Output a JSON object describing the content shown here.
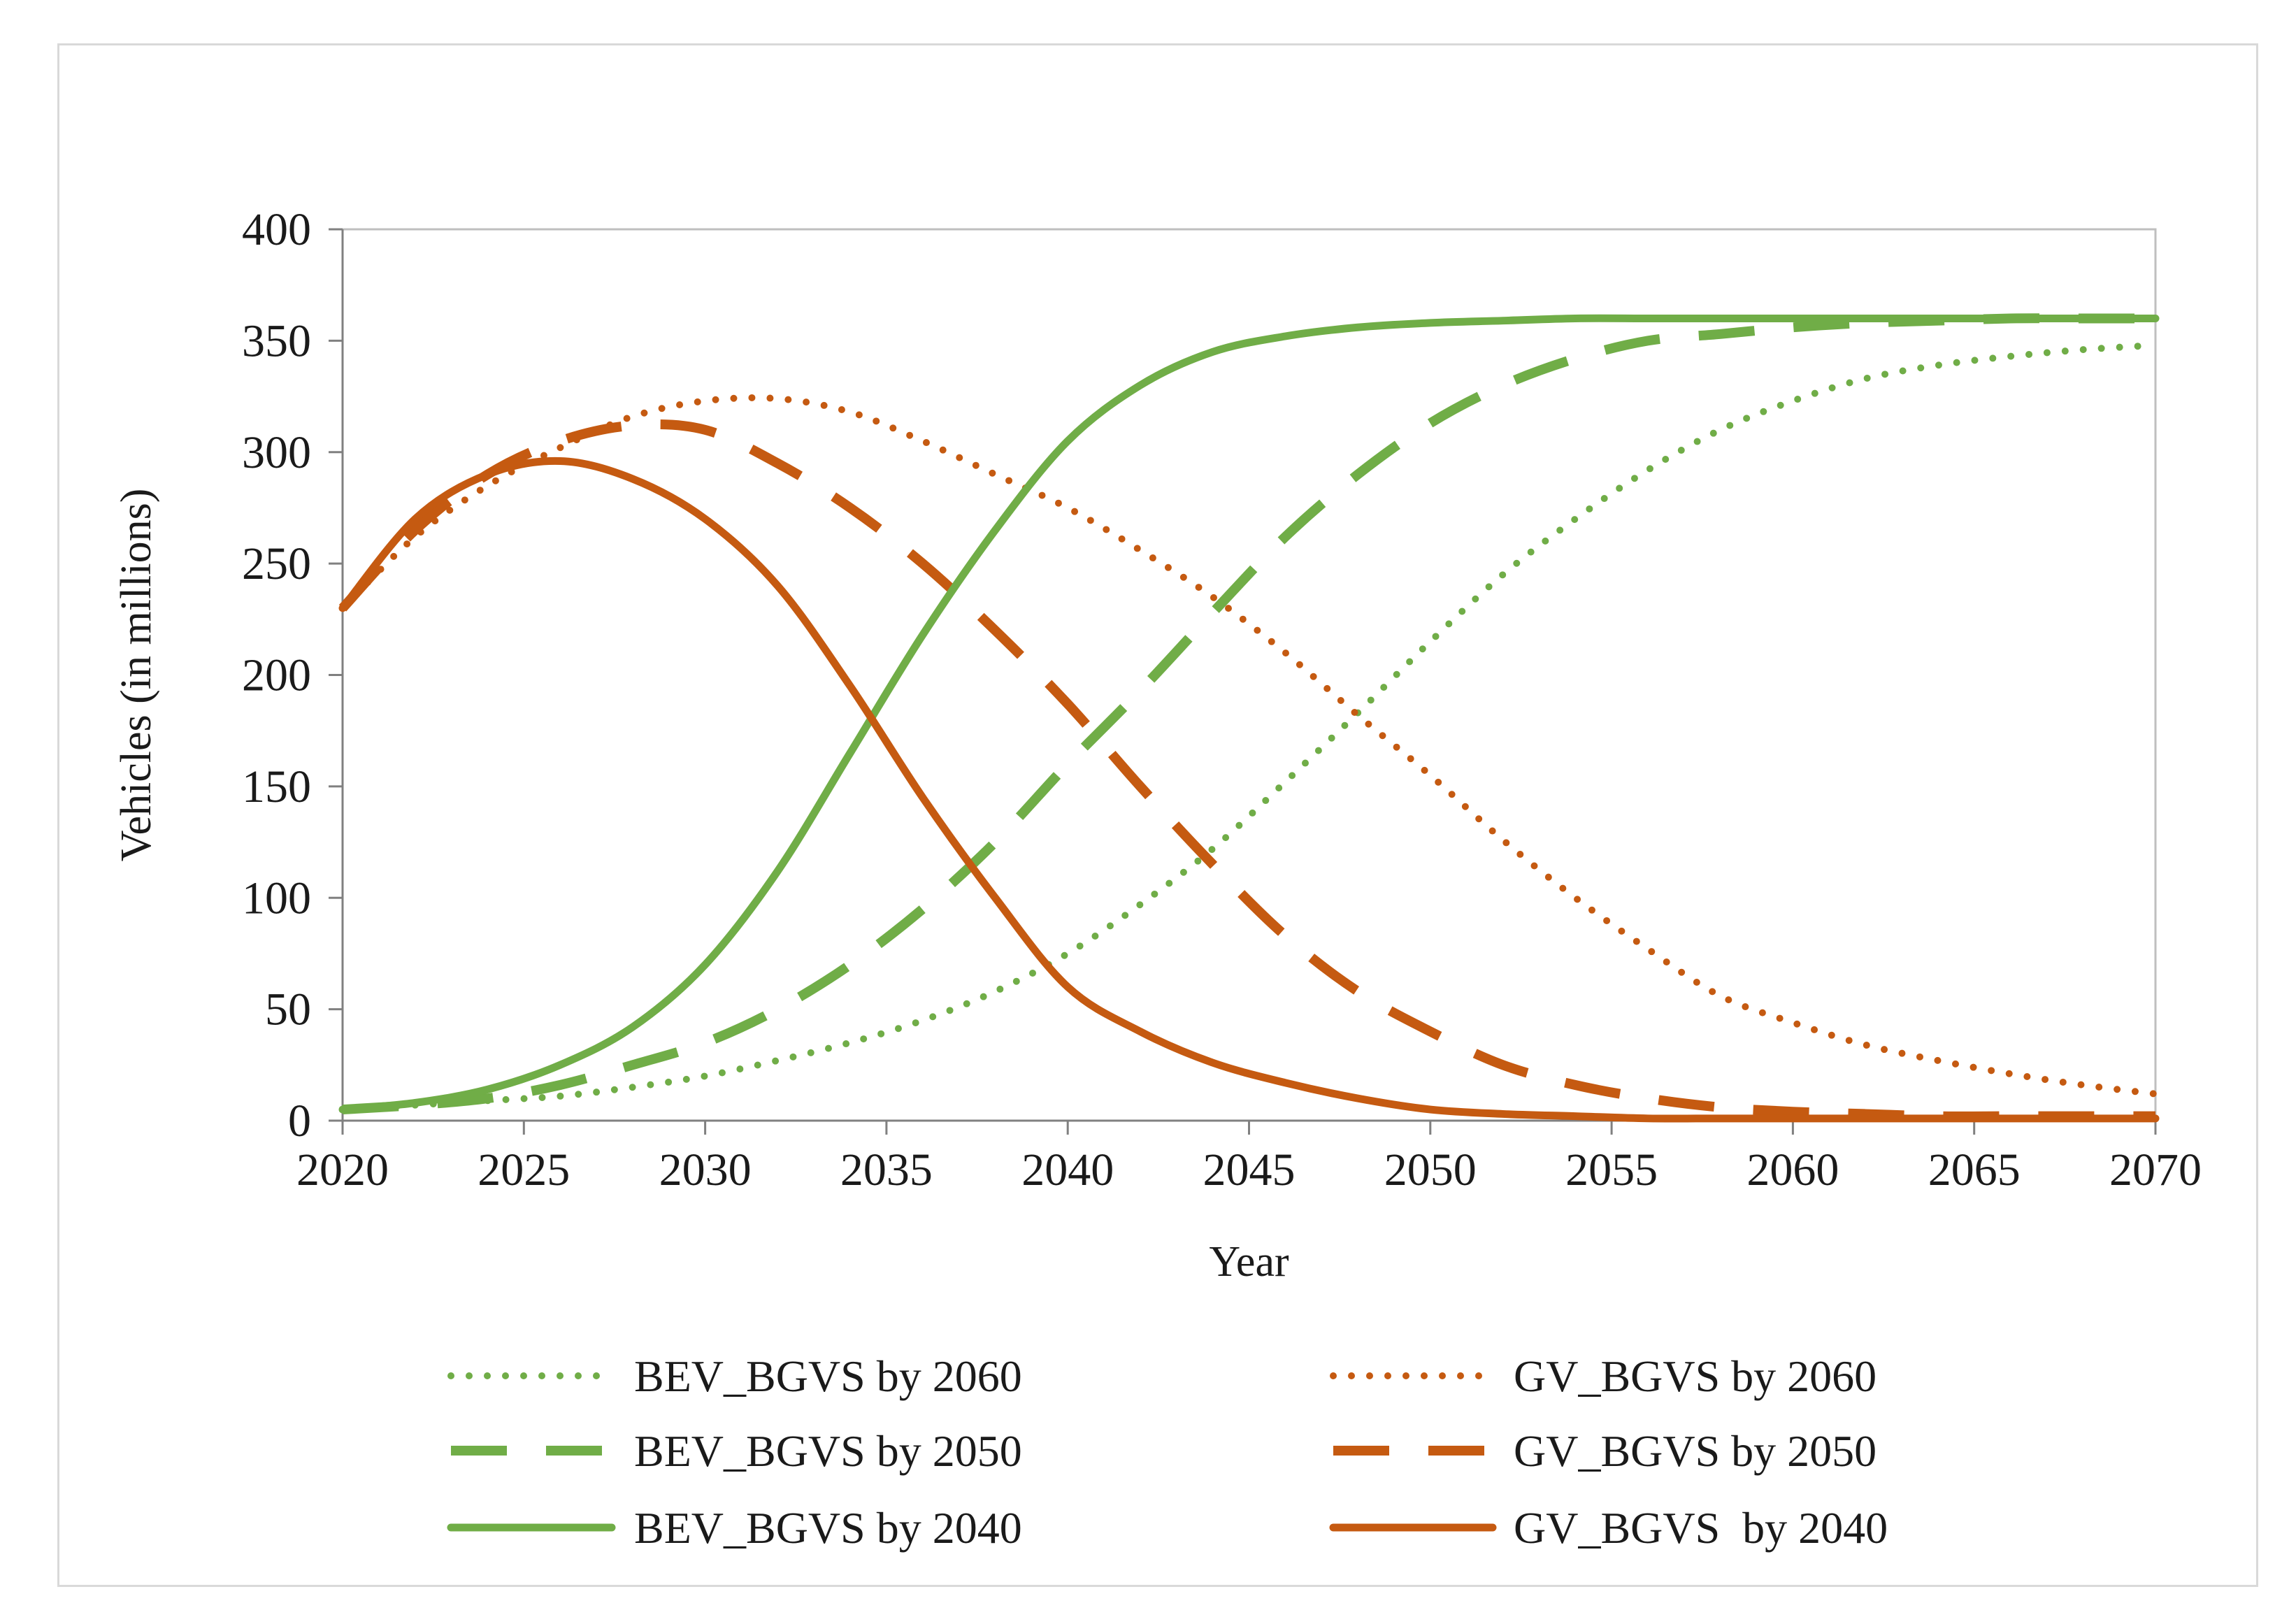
{
  "colors": {
    "bev": "#70AD47",
    "gv": "#C55A11",
    "axis": "#808080"
  },
  "chart_data": {
    "type": "line",
    "title": "",
    "xlabel": "Year",
    "ylabel": "Vehicles (in millions)",
    "xlim": [
      2020,
      2070
    ],
    "ylim": [
      0,
      400
    ],
    "xticks": [
      "2020",
      "2025",
      "2030",
      "2035",
      "2040",
      "2045",
      "2050",
      "2055",
      "2060",
      "2065",
      "2070"
    ],
    "yticks": [
      "0",
      "50",
      "100",
      "150",
      "200",
      "250",
      "300",
      "350",
      "400"
    ],
    "legend_position": "bottom",
    "x": [
      2020,
      2022,
      2024,
      2026,
      2028,
      2030,
      2032,
      2034,
      2036,
      2038,
      2040,
      2042,
      2044,
      2046,
      2048,
      2050,
      2052,
      2054,
      2056,
      2058,
      2060,
      2062,
      2064,
      2066,
      2068,
      2070
    ],
    "series": [
      {
        "name": "BEV_BGVS by 2060",
        "group": "bev",
        "style": "dotted",
        "values": [
          5,
          7,
          9,
          11,
          15,
          20,
          27,
          35,
          45,
          58,
          75,
          97,
          122,
          152,
          183,
          215,
          245,
          270,
          292,
          310,
          323,
          333,
          339,
          343,
          346,
          348
        ]
      },
      {
        "name": "GV_BGVS by 2060",
        "group": "gv",
        "style": "dotted",
        "values": [
          230,
          262,
          285,
          302,
          316,
          323,
          324,
          318,
          305,
          290,
          275,
          256,
          235,
          210,
          182,
          155,
          126,
          100,
          77,
          56,
          44,
          34,
          27,
          21,
          16,
          12
        ]
      },
      {
        "name": "BEV_BGVS by 2050",
        "group": "bev",
        "style": "dashed",
        "values": [
          5,
          7,
          10,
          16,
          25,
          35,
          50,
          70,
          95,
          125,
          160,
          193,
          228,
          262,
          290,
          313,
          330,
          342,
          350,
          353,
          356,
          358,
          359,
          360,
          360,
          360
        ]
      },
      {
        "name": "GV_BGVS by 2050",
        "group": "gv",
        "style": "dashed",
        "values": [
          230,
          265,
          290,
          305,
          312,
          310,
          295,
          275,
          250,
          220,
          187,
          150,
          115,
          83,
          58,
          40,
          25,
          16,
          10,
          6,
          4,
          3,
          2,
          2,
          2,
          2
        ]
      },
      {
        "name": "BEV_BGVS by 2040",
        "group": "bev",
        "style": "solid",
        "values": [
          5,
          8,
          14,
          25,
          42,
          70,
          112,
          165,
          218,
          265,
          305,
          330,
          345,
          352,
          356,
          358,
          359,
          360,
          360,
          360,
          360,
          360,
          360,
          360,
          360,
          360
        ]
      },
      {
        "name": "GV_BGVS  by 2040",
        "group": "gv",
        "style": "solid",
        "values": [
          230,
          270,
          290,
          296,
          288,
          270,
          240,
          195,
          145,
          100,
          60,
          40,
          26,
          17,
          10,
          5,
          3,
          2,
          1,
          1,
          1,
          1,
          1,
          1,
          1,
          1
        ]
      }
    ]
  }
}
